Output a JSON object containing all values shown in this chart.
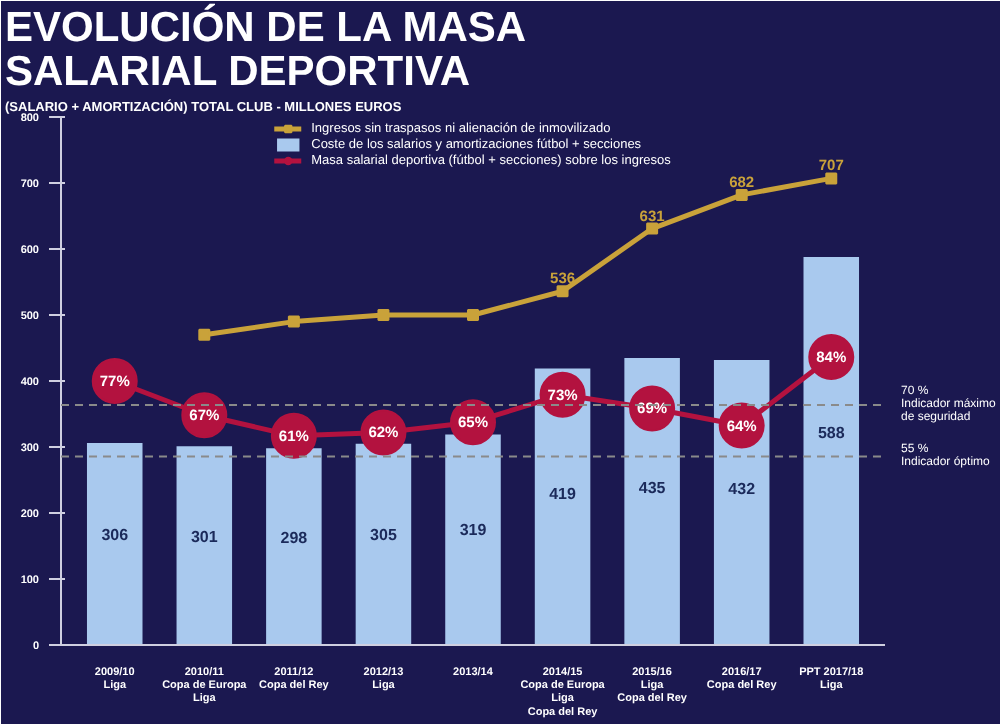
{
  "chart_data": {
    "type": "bar",
    "title": "EVOLUCIÓN DE LA MASA\nSALARIAL DEPORTIVA",
    "subtitle": "(SALARIO + AMORTIZACIÓN) TOTAL CLUB  - MILLONES EUROS",
    "categories": [
      "2009/10\nLiga",
      "2010/11\nCopa de Europa\nLiga",
      "2011/12\nCopa del Rey",
      "2012/13\nLiga",
      "2013/14",
      "2014/15\nCopa de Europa\nLiga\nCopa del Rey",
      "2015/16\nLiga\nCopa del Rey",
      "2016/17\nCopa del Rey",
      "PPT 2017/18\nLiga"
    ],
    "series": [
      {
        "name": "Coste de los salarios y amortizaciones fútbol + secciones",
        "color": "#a9c9ee",
        "values": [
          306,
          301,
          298,
          305,
          319,
          419,
          435,
          432,
          588
        ],
        "data_labels": true
      },
      {
        "type": "line",
        "name": "Ingresos sin traspasos ni alienación de inmovilizado",
        "color": "#c9a23a",
        "marker": "square",
        "values": [
          null,
          470,
          490,
          500,
          500,
          536,
          631,
          682,
          707
        ],
        "value_labels": [
          null,
          null,
          null,
          null,
          null,
          "536",
          "631",
          "682",
          "707"
        ]
      },
      {
        "type": "line",
        "name": "Masa salarial deportiva (fútbol + secciones) sobre los ingresos",
        "color": "#b3123f",
        "marker": "circle",
        "axis": "y2",
        "values": [
          77,
          67,
          61,
          62,
          65,
          73,
          69,
          64,
          84
        ],
        "value_labels": [
          "77%",
          "67%",
          "61%",
          "62%",
          "65%",
          "73%",
          "69%",
          "64%",
          "84%"
        ]
      }
    ],
    "ylim": [
      0,
      800
    ],
    "yticks": [
      0,
      100,
      200,
      300,
      400,
      500,
      600,
      700,
      800
    ],
    "y2lim": [
      0,
      154
    ],
    "ref_lines": [
      {
        "axis": "y2",
        "value": 70,
        "label": "70 %\nIndicador máximo\nde seguridad",
        "color": "#8a8a8a",
        "line_style": "dashed"
      },
      {
        "axis": "y2",
        "value": 55,
        "label": "55 %\nIndicador óptimo",
        "color": "#8a8a8a",
        "line_style": "dashed"
      }
    ],
    "legend": "top",
    "grid": false
  }
}
